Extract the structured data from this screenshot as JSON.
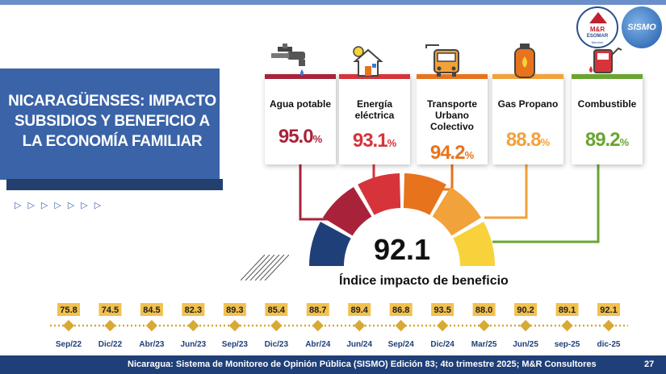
{
  "header": {
    "logo_mr_line1": "M&R",
    "logo_mr_line2": "ESOMAR",
    "logo_mr_line3": "Member",
    "logo_sismo": "SISMO"
  },
  "title": "NICARAGÜENSES: IMPACTO SUBSIDIOS Y BENEFICIO A LA ECONOMÍA FAMILIAR",
  "decor_arrows": "▷▷▷▷▷▷▷",
  "cards": [
    {
      "label": "Agua potable",
      "value": "95.0",
      "unit": "%",
      "color": "#a8233a",
      "icon": "water-tap-icon"
    },
    {
      "label": "Energía eléctrica",
      "value": "93.1",
      "unit": "%",
      "color": "#d6343a",
      "icon": "electricity-house-icon"
    },
    {
      "label": "Transporte Urbano Colectivo",
      "value": "94.2",
      "unit": "%",
      "color": "#e8731d",
      "icon": "bus-icon"
    },
    {
      "label": "Gas Propano",
      "value": "88.8",
      "unit": "%",
      "color": "#f2a23a",
      "icon": "gas-cylinder-icon"
    },
    {
      "label": "Combustible",
      "value": "89.2",
      "unit": "%",
      "color": "#6aa532",
      "icon": "fuel-pump-icon"
    }
  ],
  "gauge": {
    "value": "92.1",
    "label": "Índice impacto de beneficio",
    "colors": [
      "#1f3f78",
      "#a8233a",
      "#d6343a",
      "#e8731d",
      "#f2a23a",
      "#f7d23a"
    ]
  },
  "chart_data": {
    "type": "line",
    "categories": [
      "Sep/22",
      "Dic/22",
      "Abr/23",
      "Jun/23",
      "Sep/23",
      "Dic/23",
      "Abr/24",
      "Jun/24",
      "Sep/24",
      "Dic/24",
      "Mar/25",
      "Jun/25",
      "sep-25",
      "dic-25"
    ],
    "values": [
      75.8,
      74.5,
      84.5,
      82.3,
      89.3,
      85.4,
      88.7,
      89.4,
      86.8,
      93.5,
      88.0,
      90.2,
      89.1,
      92.1
    ],
    "labels": [
      "75.8",
      "74.5",
      "84.5",
      "82.3",
      "89.3",
      "85.4",
      "88.7",
      "89.4",
      "86.8",
      "93.5",
      "88.0",
      "90.2",
      "89.1",
      "92.1"
    ],
    "marker_color": "#d8a934",
    "label_bg": "#f2c14e"
  },
  "footer": {
    "source": "Nicaragua: Sistema de Monitoreo de Opinión Pública (SISMO) Edición 83; 4to trimestre 2025; M&R Consultores",
    "page": "27"
  }
}
